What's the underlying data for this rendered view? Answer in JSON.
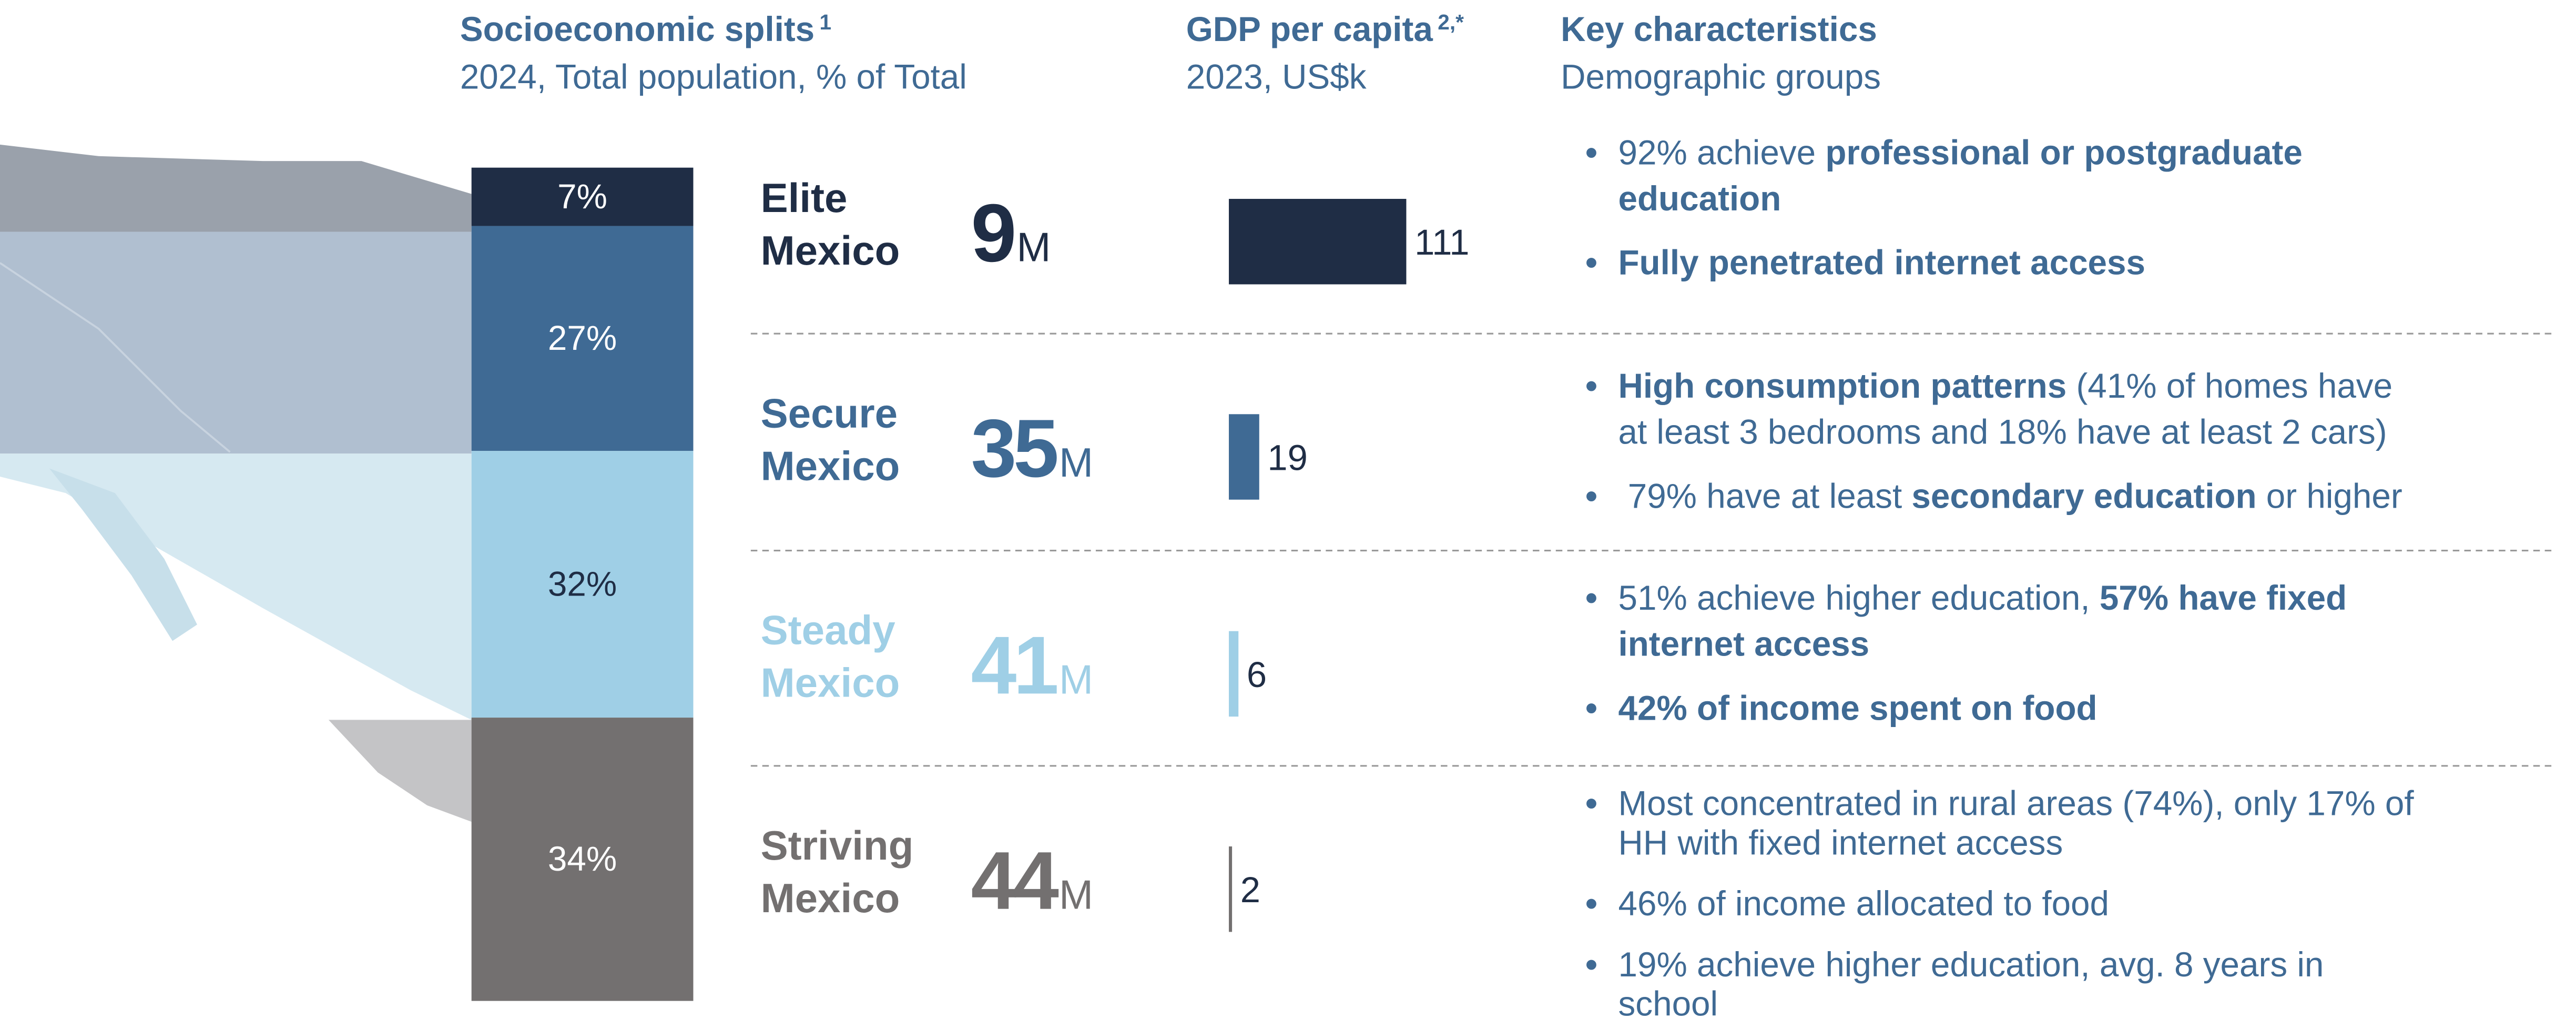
{
  "headers": [
    {
      "title": "Socioeconomic splits",
      "note": "1",
      "subtitle": "2024, Total population, % of Total"
    },
    {
      "title": "GDP per capita",
      "note": "2,*",
      "subtitle": "2023, US$k"
    },
    {
      "title": "Key characteristics",
      "subtitle": "Demographic groups"
    }
  ],
  "splits": {
    "values": [
      7,
      27,
      32,
      34
    ],
    "value_labels": [
      "7%",
      "27%",
      "32%",
      "34%"
    ],
    "colors": [
      "#1f2d45",
      "#3f6a94",
      "#9fcfe6",
      "#737070"
    ],
    "label_colors": [
      "#ffffff",
      "#ffffff",
      "#1f2d45",
      "#ffffff"
    ]
  },
  "groups": [
    {
      "name": [
        "Elite",
        "Mexico"
      ],
      "population": 9,
      "population_unit": "M",
      "gdp": 111,
      "color": "#1f2d45",
      "bullets": [
        [
          [
            {
              "text": "92% achieve ",
              "bold": false
            },
            {
              "text": "professional or postgraduate",
              "bold": true
            }
          ],
          [
            {
              "text": "education",
              "bold": true
            }
          ]
        ],
        [
          [
            {
              "text": "Fully penetrated internet access",
              "bold": true
            }
          ]
        ]
      ]
    },
    {
      "name": [
        "Secure",
        "Mexico"
      ],
      "population": 35,
      "population_unit": "M",
      "gdp": 19,
      "color": "#3f6a94",
      "bullets": [
        [
          [
            {
              "text": "High consumption patterns",
              "bold": true
            },
            {
              "text": " (41% of homes have",
              "bold": false
            }
          ],
          [
            {
              "text": "at least 3 bedrooms and 18% have at least 2 cars)",
              "bold": false
            }
          ]
        ],
        [
          [
            {
              "text": " 79% have at least ",
              "bold": false
            },
            {
              "text": "secondary education",
              "bold": true
            },
            {
              "text": " or higher",
              "bold": false
            }
          ]
        ]
      ]
    },
    {
      "name": [
        "Steady",
        "Mexico"
      ],
      "population": 41,
      "population_unit": "M",
      "gdp": 6,
      "color": "#9fcfe6",
      "bullets": [
        [
          [
            {
              "text": "51% achieve higher education, ",
              "bold": false
            },
            {
              "text": "57% have fixed",
              "bold": true
            }
          ],
          [
            {
              "text": "internet access",
              "bold": true
            }
          ]
        ],
        [
          [
            {
              "text": "42% of income spent on food",
              "bold": true
            }
          ]
        ]
      ]
    },
    {
      "name": [
        "Striving",
        "Mexico"
      ],
      "population": 44,
      "population_unit": "M",
      "gdp": 2,
      "color": "#737070",
      "bullets": [
        [
          [
            {
              "text": "Most concentrated in rural areas (74%), only 17% of",
              "bold": false
            }
          ],
          [
            {
              "text": "HH with fixed internet access",
              "bold": false
            }
          ]
        ],
        [
          [
            {
              "text": "46% of income allocated to food",
              "bold": false
            }
          ]
        ],
        [
          [
            {
              "text": "19% achieve higher education, avg. 8 years in",
              "bold": false
            }
          ],
          [
            {
              "text": "school",
              "bold": false
            }
          ]
        ]
      ]
    }
  ]
}
